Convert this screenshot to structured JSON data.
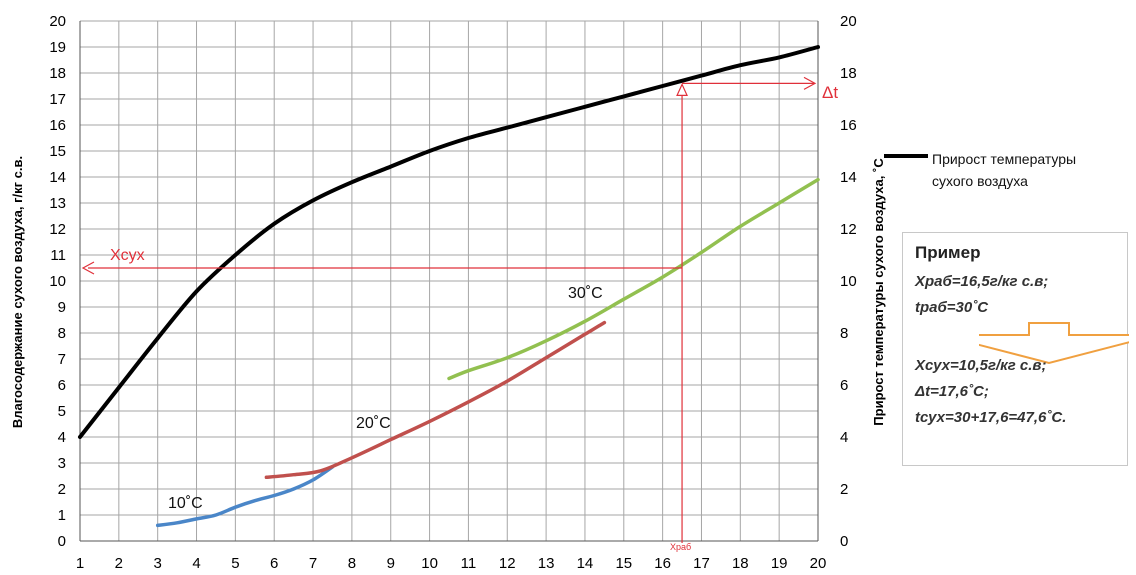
{
  "chart_data": {
    "type": "line",
    "xlim": [
      1,
      20
    ],
    "ylim": [
      0,
      20
    ],
    "y2lim": [
      0,
      20
    ],
    "x_ticks": [
      "1",
      "2",
      "3",
      "4",
      "5",
      "6",
      "7",
      "8",
      "9",
      "10",
      "11",
      "12",
      "13",
      "14",
      "15",
      "16",
      "17",
      "18",
      "19",
      "20"
    ],
    "y_ticks": [
      "0",
      "1",
      "2",
      "3",
      "4",
      "5",
      "6",
      "7",
      "8",
      "9",
      "10",
      "11",
      "12",
      "13",
      "14",
      "15",
      "16",
      "17",
      "18",
      "19",
      "20"
    ],
    "y2_ticks": [
      "0",
      "2",
      "4",
      "6",
      "8",
      "10",
      "12",
      "14",
      "16",
      "18",
      "20"
    ],
    "ylabel": "Влагосодержание сухого воздуха, г/кг с.в.",
    "y2label": "Прирост температуры сухого воздуха, ˚С",
    "grid": true,
    "legend_position": "right",
    "series": [
      {
        "name": "Прирост температуры сухого воздуха",
        "axis": "right",
        "color": "#000000",
        "x": [
          1,
          2,
          3,
          4,
          5,
          6,
          7,
          8,
          9,
          10,
          11,
          12,
          13,
          14,
          15,
          16,
          17,
          18,
          19,
          20
        ],
        "y": [
          4.0,
          5.9,
          7.8,
          9.6,
          11.0,
          12.2,
          13.1,
          13.8,
          14.4,
          15.0,
          15.5,
          15.9,
          16.3,
          16.7,
          17.1,
          17.5,
          17.9,
          18.3,
          18.6,
          19.0
        ]
      },
      {
        "name": "",
        "color": "#4a86c8",
        "x": [
          3,
          3.5,
          4,
          4.5,
          5,
          5.5,
          6,
          6.5,
          7,
          7.5
        ],
        "y": [
          0.6,
          0.7,
          0.85,
          1.0,
          1.3,
          1.55,
          1.75,
          2.0,
          2.35,
          2.85
        ]
      },
      {
        "name": "",
        "color": "#c0504d",
        "x": [
          5.8,
          6.5,
          7.2,
          8,
          9,
          10,
          11,
          12,
          13,
          14,
          14.5
        ],
        "y": [
          2.45,
          2.55,
          2.7,
          3.2,
          3.9,
          4.6,
          5.35,
          6.15,
          7.05,
          7.95,
          8.4
        ]
      },
      {
        "name": "",
        "color": "#92c050",
        "x": [
          10.5,
          11,
          12,
          13,
          14,
          15,
          16,
          17,
          18,
          19,
          20
        ],
        "y": [
          6.25,
          6.55,
          7.05,
          7.7,
          8.45,
          9.3,
          10.15,
          11.1,
          12.1,
          13.0,
          13.9
        ]
      }
    ],
    "annotations": {
      "curve_10": "10˚С",
      "curve_20": "20˚С",
      "curve_30": "30˚С",
      "x_dry_label": "Хсух",
      "dt_label": "Δt",
      "x_work_label": "Храб",
      "x_work_value": 16.5,
      "x_dry_value": 10.5,
      "dt_value": 17.6
    }
  },
  "legend": {
    "line1": "Прирост температуры",
    "line2": "сухого воздуха"
  },
  "example": {
    "title": "Пример",
    "line1": "Храб=16,5г/кг с.в;",
    "line2": "tраб=30˚С",
    "line3": "Хсух=10,5г/кг с.в;",
    "line4": "Δt=17,6˚С;",
    "line5": "tсух=30+17,6=47,6˚С."
  },
  "colors": {
    "grid": "#a6a6a6",
    "guide": "#e0303a",
    "arrow_fill": "#ffffff",
    "arrow_stroke": "#f0a040"
  }
}
